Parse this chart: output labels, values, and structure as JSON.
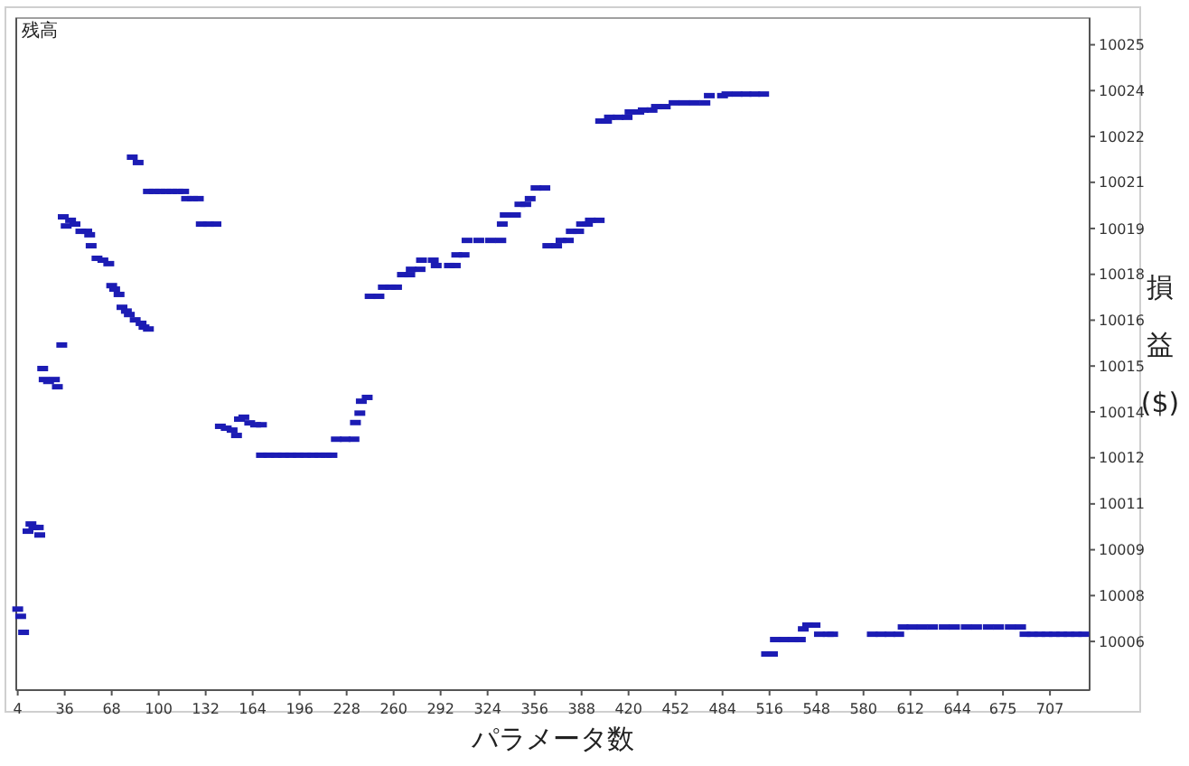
{
  "chart_data": {
    "type": "scatter",
    "title": "残高",
    "xlabel": "パラメータ数",
    "ylabel": "損益($)",
    "marker": "square",
    "grid": false,
    "xlim": [
      3,
      734
    ],
    "xticks": [
      4,
      36,
      68,
      100,
      132,
      164,
      196,
      228,
      260,
      292,
      324,
      356,
      388,
      420,
      452,
      484,
      516,
      548,
      580,
      612,
      644,
      675,
      707
    ],
    "ylim": [
      10004.68,
      10026.08
    ],
    "yticks": [
      {
        "value": 10006.23,
        "label": "10006"
      },
      {
        "value": 10007.69,
        "label": "10008"
      },
      {
        "value": 10009.15,
        "label": "10009"
      },
      {
        "value": 10010.61,
        "label": "10011"
      },
      {
        "value": 10012.08,
        "label": "10012"
      },
      {
        "value": 10013.54,
        "label": "10014"
      },
      {
        "value": 10015.0,
        "label": "10015"
      },
      {
        "value": 10016.46,
        "label": "10016"
      },
      {
        "value": 10017.92,
        "label": "10018"
      },
      {
        "value": 10019.38,
        "label": "10019"
      },
      {
        "value": 10020.85,
        "label": "10021"
      },
      {
        "value": 10022.31,
        "label": "10022"
      },
      {
        "value": 10023.77,
        "label": "10024"
      },
      {
        "value": 10025.23,
        "label": "10025"
      }
    ],
    "series": [
      {
        "color": "#1c1cb4",
        "x": [
          4,
          6,
          8,
          11,
          13,
          15,
          18,
          19,
          21,
          22,
          25,
          29,
          31,
          34,
          35,
          37,
          40,
          43,
          47,
          51,
          53,
          54,
          58,
          62,
          66,
          68,
          70,
          73,
          75,
          78,
          80,
          84,
          88,
          90,
          93,
          82,
          86,
          93,
          97,
          101,
          105,
          109,
          113,
          117,
          119,
          123,
          127,
          129,
          134,
          139,
          142,
          146,
          150,
          153,
          155,
          158,
          162,
          166,
          170,
          170,
          175,
          180,
          185,
          190,
          195,
          200,
          205,
          210,
          214,
          218,
          221,
          227,
          233,
          234,
          237,
          238,
          242,
          244,
          250,
          253,
          258,
          262,
          266,
          271,
          272,
          278,
          279,
          287,
          289,
          298,
          302,
          303,
          308,
          310,
          318,
          326,
          333,
          334,
          336,
          343,
          346,
          350,
          353,
          357,
          363,
          365,
          371,
          374,
          379,
          381,
          386,
          388,
          392,
          394,
          400,
          401,
          405,
          407,
          413,
          419,
          421,
          427,
          430,
          436,
          439,
          445,
          451,
          458,
          465,
          472,
          475,
          484,
          487,
          494,
          500,
          506,
          512,
          514,
          518,
          520,
          526,
          532,
          537,
          539,
          542,
          547,
          550,
          556,
          559,
          586,
          592,
          598,
          604,
          607,
          613,
          620,
          627,
          635,
          642,
          650,
          657,
          665,
          672,
          680,
          687,
          690,
          695,
          700,
          705,
          710,
          715,
          720,
          725,
          730
        ],
        "values": [
          10007.26,
          10007.03,
          10006.52,
          10009.74,
          10009.97,
          10009.86,
          10009.86,
          10009.62,
          10014.92,
          10014.57,
          10014.51,
          10014.57,
          10014.34,
          10015.67,
          10019.75,
          10019.46,
          10019.64,
          10019.52,
          10019.29,
          10019.29,
          10019.18,
          10018.83,
          10018.43,
          10018.37,
          10018.26,
          10017.56,
          10017.45,
          10017.28,
          10016.87,
          10016.75,
          10016.64,
          10016.47,
          10016.36,
          10016.24,
          10016.18,
          10021.65,
          10021.48,
          10020.56,
          10020.56,
          10020.56,
          10020.56,
          10020.56,
          10020.56,
          10020.56,
          10020.33,
          10020.33,
          10020.33,
          10019.52,
          10019.52,
          10019.52,
          10013.08,
          10013.02,
          10012.96,
          10012.79,
          10013.31,
          10013.37,
          10013.19,
          10013.13,
          10013.13,
          10012.16,
          10012.16,
          10012.16,
          10012.16,
          10012.16,
          10012.16,
          10012.16,
          10012.16,
          10012.16,
          10012.16,
          10012.16,
          10012.67,
          10012.67,
          10012.67,
          10013.2,
          10013.5,
          10013.88,
          10014.0,
          10017.22,
          10017.22,
          10017.51,
          10017.51,
          10017.51,
          10017.91,
          10017.91,
          10018.08,
          10018.08,
          10018.37,
          10018.37,
          10018.2,
          10018.2,
          10018.2,
          10018.54,
          10018.54,
          10019.0,
          10019.0,
          10019.0,
          10019.0,
          10019.52,
          10019.81,
          10019.81,
          10020.15,
          10020.15,
          10020.33,
          10020.67,
          10020.67,
          10018.83,
          10018.83,
          10019.0,
          10019.0,
          10019.29,
          10019.29,
          10019.52,
          10019.52,
          10019.64,
          10019.64,
          10022.8,
          10022.8,
          10022.92,
          10022.92,
          10022.92,
          10023.09,
          10023.09,
          10023.15,
          10023.15,
          10023.26,
          10023.26,
          10023.38,
          10023.38,
          10023.38,
          10023.38,
          10023.61,
          10023.61,
          10023.66,
          10023.66,
          10023.66,
          10023.66,
          10023.66,
          10005.83,
          10005.83,
          10006.29,
          10006.29,
          10006.29,
          10006.29,
          10006.63,
          10006.75,
          10006.75,
          10006.46,
          10006.46,
          10006.46,
          10006.46,
          10006.46,
          10006.46,
          10006.46,
          10006.69,
          10006.69,
          10006.69,
          10006.69,
          10006.69,
          10006.69,
          10006.69,
          10006.69,
          10006.69,
          10006.69,
          10006.69,
          10006.69,
          10006.46,
          10006.46,
          10006.46,
          10006.46,
          10006.46,
          10006.46,
          10006.46,
          10006.46,
          10006.46
        ]
      }
    ]
  }
}
